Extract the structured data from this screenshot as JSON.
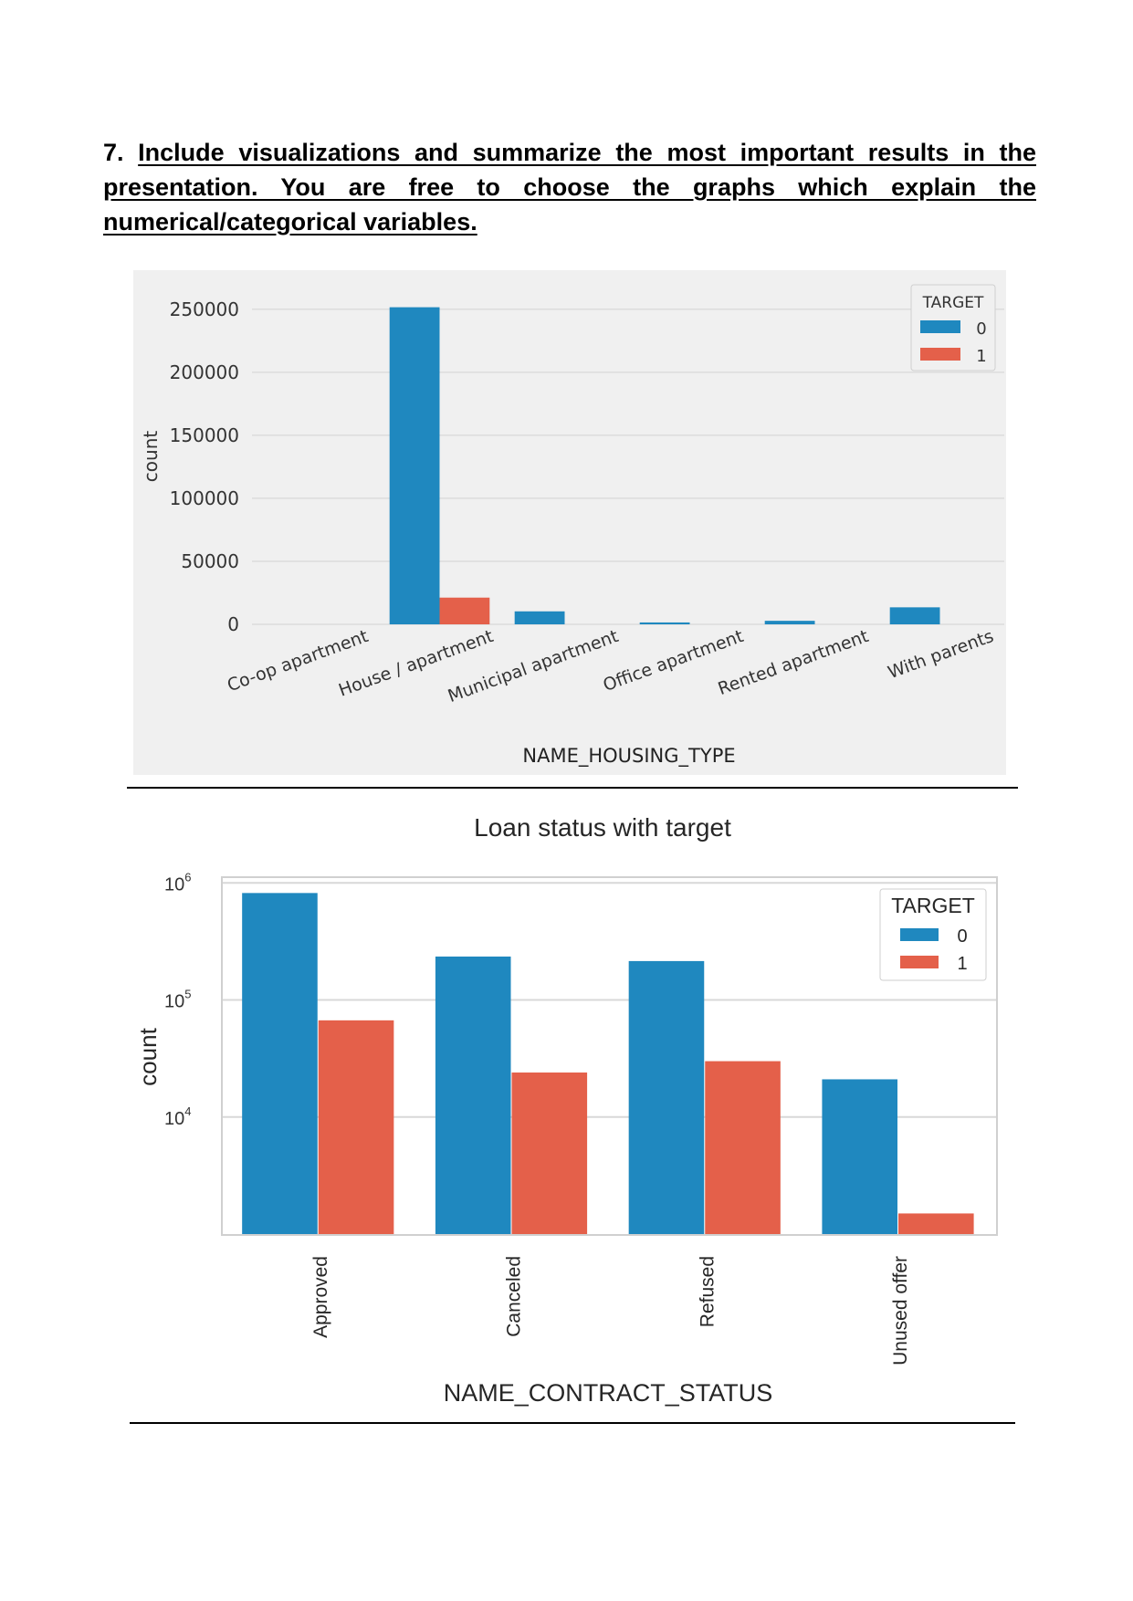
{
  "heading": {
    "number": "7.",
    "text": "Include visualizations and summarize the most important results in the presentation. You are free to choose the graphs which explain the numerical/categorical variables."
  },
  "chart_data": [
    {
      "type": "bar",
      "title": "",
      "xlabel": "NAME_HOUSING_TYPE",
      "ylabel": "count",
      "categories": [
        "Co-op apartment",
        "House / apartment",
        "Municipal apartment",
        "Office apartment",
        "Rented apartment",
        "With parents"
      ],
      "series": [
        {
          "name": "0",
          "values": [
            null,
            251600,
            10300,
            1500,
            2800,
            13500
          ]
        },
        {
          "name": "1",
          "values": [
            null,
            21200,
            null,
            null,
            null,
            null
          ]
        }
      ],
      "ylim": [
        0,
        260000
      ],
      "yticks": [
        "0",
        "50000",
        "100000",
        "150000",
        "200000",
        "250000"
      ],
      "legend_title": "TARGET",
      "legend_position": "top-right",
      "grid": true,
      "colors": {
        "0": "#1f88bf",
        "1": "#e4604a",
        "background": "#f0f0f0"
      }
    },
    {
      "type": "bar",
      "title": "Loan status with target",
      "xlabel": "NAME_CONTRACT_STATUS",
      "ylabel": "count",
      "scale": "log",
      "categories": [
        "Approved",
        "Canceled",
        "Refused",
        "Unused offer"
      ],
      "series": [
        {
          "name": "0",
          "values": [
            820000,
            235000,
            215000,
            21000
          ]
        },
        {
          "name": "1",
          "values": [
            67000,
            24000,
            30000,
            1500
          ]
        }
      ],
      "ylim": [
        1000,
        1100000
      ],
      "yticks": [
        {
          "base": "10",
          "exp": "4",
          "value": 10000
        },
        {
          "base": "10",
          "exp": "5",
          "value": 100000
        },
        {
          "base": "10",
          "exp": "6",
          "value": 1000000
        }
      ],
      "legend_title": "TARGET",
      "legend_position": "top-right",
      "grid": true,
      "colors": {
        "0": "#1f88bf",
        "1": "#e4604a",
        "background": "#ffffff"
      }
    }
  ]
}
